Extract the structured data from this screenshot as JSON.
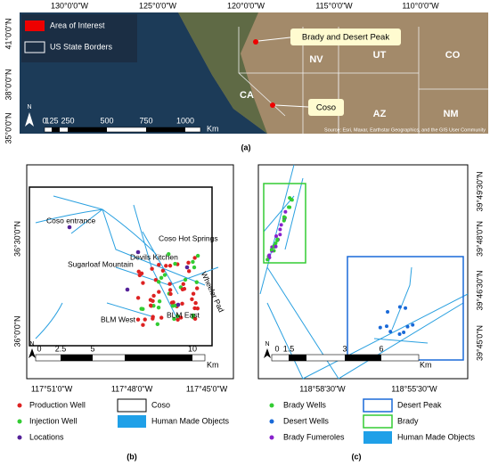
{
  "panel_a": {
    "caption": "(a)",
    "lon_labels": [
      "130°0'0\"W",
      "125°0'0\"W",
      "120°0'0\"W",
      "115°0'0\"W",
      "110°0'0\"W"
    ],
    "lat_labels": [
      "41°0'0\"N",
      "38°0'0\"N",
      "35°0'0\"N"
    ],
    "legend": [
      "Area of Interest",
      "US State Borders"
    ],
    "states": [
      "NV",
      "UT",
      "CO",
      "CA",
      "AZ",
      "NM"
    ],
    "callouts": [
      "Brady and Desert Peak",
      "Coso"
    ],
    "north": "N",
    "scale": [
      "0",
      "125",
      "250",
      "500",
      "750",
      "1000"
    ],
    "scale_unit": "Km",
    "attribution": "Source: Esri, Maxar, Earthstar Geographics, and the GIS User Community"
  },
  "panel_b": {
    "caption": "(b)",
    "lat_labels": [
      "36°30'0\"N",
      "36°0'0\"N"
    ],
    "lon_labels": [
      "117°51'0\"W",
      "117°48'0\"W",
      "117°45'0\"W"
    ],
    "places": [
      "Coso entrance",
      "Coso Hot Springs",
      "Sugarloaf Mountain",
      "Devils Kitchen",
      "BLM West",
      "BLM East",
      "Wheeler Pad"
    ],
    "north": "N",
    "scale": [
      "0",
      "2.5",
      "5",
      "10"
    ],
    "scale_unit": "Km",
    "legend": [
      "Production Well",
      "Injection Well",
      "Locations",
      "Coso",
      "Human Made Objects"
    ]
  },
  "panel_c": {
    "caption": "(c)",
    "lat_labels": [
      "39°49'30\"N",
      "39°48'0\"N",
      "39°46'30\"N",
      "39°45'0\"N"
    ],
    "lon_labels": [
      "118°58'30\"W",
      "118°55'30\"W"
    ],
    "north": "N",
    "scale": [
      "0",
      "1.5",
      "3",
      "6"
    ],
    "scale_unit": "Km",
    "legend": [
      "Brady Wells",
      "Desert Wells",
      "Brady Fumeroles",
      "Desert Peak",
      "Brady",
      "Human Made Objects"
    ]
  }
}
